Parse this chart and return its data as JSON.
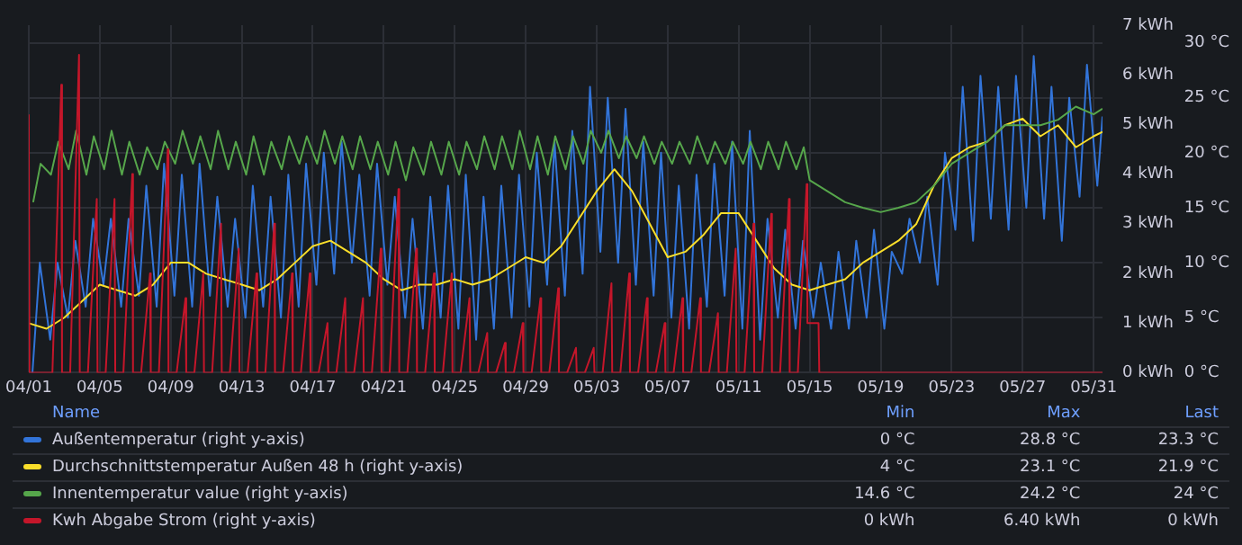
{
  "chart_data": {
    "type": "line",
    "legend": "bottom",
    "grid": true,
    "xlim": [
      "--04-01",
      "--05-31T12:00"
    ],
    "xticks": [
      {
        "value": "--04-01",
        "label": "04/01"
      },
      {
        "value": "--04-05",
        "label": "04/05"
      },
      {
        "value": "--04-09",
        "label": "04/09"
      },
      {
        "value": "--04-13",
        "label": "04/13"
      },
      {
        "value": "--04-17",
        "label": "04/17"
      },
      {
        "value": "--04-21",
        "label": "04/21"
      },
      {
        "value": "--04-25",
        "label": "04/25"
      },
      {
        "value": "--04-29",
        "label": "04/29"
      },
      {
        "value": "--05-03",
        "label": "05/03"
      },
      {
        "value": "--05-07",
        "label": "05/07"
      },
      {
        "value": "--05-11",
        "label": "05/11"
      },
      {
        "value": "--05-15",
        "label": "05/15"
      },
      {
        "value": "--05-19",
        "label": "05/19"
      },
      {
        "value": "--05-23",
        "label": "05/23"
      },
      {
        "value": "--05-27",
        "label": "05/27"
      },
      {
        "value": "--05-31",
        "label": "05/31"
      }
    ],
    "ylim": [
      0,
      31.6
    ],
    "yticks": [
      {
        "value": 0,
        "label": "0 °C"
      },
      {
        "value": 5,
        "label": "5 °C"
      },
      {
        "value": 10,
        "label": "10 °C"
      },
      {
        "value": 15,
        "label": "15 °C"
      },
      {
        "value": 20,
        "label": "20 °C"
      },
      {
        "value": 25,
        "label": "25 °C"
      },
      {
        "value": 30,
        "label": "30 °C"
      }
    ],
    "y2lim": [
      0,
      7
    ],
    "y2ticks": [
      {
        "value": 0,
        "label": "0 kWh"
      },
      {
        "value": 1,
        "label": "1 kWh"
      },
      {
        "value": 2,
        "label": "2 kWh"
      },
      {
        "value": 3,
        "label": "3 kWh"
      },
      {
        "value": 4,
        "label": "4 kWh"
      },
      {
        "value": 5,
        "label": "5 kWh"
      },
      {
        "value": 6,
        "label": "6 kWh"
      },
      {
        "value": 7,
        "label": "7 kWh"
      }
    ],
    "annotations": [
      "Name",
      "Min",
      "Max",
      "Last",
      "0 °C",
      "28.8 °C",
      "23.3 °C",
      "4 °C",
      "23.1 °C",
      "21.9 °C",
      "14.6 °C",
      "24.2 °C",
      "24 °C",
      "0 kWh",
      "6.40 kWh",
      "0 kWh"
    ],
    "series": [
      {
        "name": "Außentemperatur (right y-axis)",
        "color": "#3274d9",
        "x": [
          "--04-01T05:00",
          "--04-01T15:00",
          "--04-02T05:00",
          "--04-02T15:00",
          "--04-03T05:00",
          "--04-03T15:00",
          "--04-04T05:00",
          "--04-04T15:00",
          "--04-05T05:00",
          "--04-05T15:00",
          "--04-06T05:00",
          "--04-06T15:00",
          "--04-07T05:00",
          "--04-07T15:00",
          "--04-08T05:00",
          "--04-08T15:00",
          "--04-09T05:00",
          "--04-09T15:00",
          "--04-10T05:00",
          "--04-10T15:00",
          "--04-11T05:00",
          "--04-11T15:00",
          "--04-12T05:00",
          "--04-12T15:00",
          "--04-13T05:00",
          "--04-13T15:00",
          "--04-14T05:00",
          "--04-14T15:00",
          "--04-15T05:00",
          "--04-15T15:00",
          "--04-16T05:00",
          "--04-16T15:00",
          "--04-17T05:00",
          "--04-17T15:00",
          "--04-18T05:00",
          "--04-18T15:00",
          "--04-19T05:00",
          "--04-19T15:00",
          "--04-20T05:00",
          "--04-20T15:00",
          "--04-21T05:00",
          "--04-21T15:00",
          "--04-22T05:00",
          "--04-22T15:00",
          "--04-23T05:00",
          "--04-23T15:00",
          "--04-24T05:00",
          "--04-24T15:00",
          "--04-25T05:00",
          "--04-25T15:00",
          "--04-26T05:00",
          "--04-26T15:00",
          "--04-27T05:00",
          "--04-27T15:00",
          "--04-28T05:00",
          "--04-28T15:00",
          "--04-29T05:00",
          "--04-29T15:00",
          "--04-30T05:00",
          "--04-30T15:00",
          "--05-01T05:00",
          "--05-01T15:00",
          "--05-02T05:00",
          "--05-02T15:00",
          "--05-03T05:00",
          "--05-03T15:00",
          "--05-04T05:00",
          "--05-04T15:00",
          "--05-05T05:00",
          "--05-05T15:00",
          "--05-06T05:00",
          "--05-06T15:00",
          "--05-07T05:00",
          "--05-07T15:00",
          "--05-08T05:00",
          "--05-08T15:00",
          "--05-09T05:00",
          "--05-09T15:00",
          "--05-10T05:00",
          "--05-10T15:00",
          "--05-11T05:00",
          "--05-11T15:00",
          "--05-12T05:00",
          "--05-12T15:00",
          "--05-13T05:00",
          "--05-13T15:00",
          "--05-14T05:00",
          "--05-14T15:00",
          "--05-15T05:00",
          "--05-15T15:00",
          "--05-16T05:00",
          "--05-16T15:00",
          "--05-17T05:00",
          "--05-17T15:00",
          "--05-18T05:00",
          "--05-18T15:00",
          "--05-19T05:00",
          "--05-19T15:00",
          "--05-20T05:00",
          "--05-20T15:00",
          "--05-21T05:00",
          "--05-21T15:00",
          "--05-22T05:00",
          "--05-22T15:00",
          "--05-23T05:00",
          "--05-23T15:00",
          "--05-24T05:00",
          "--05-24T15:00",
          "--05-25T05:00",
          "--05-25T15:00",
          "--05-26T05:00",
          "--05-26T15:00",
          "--05-27T05:00",
          "--05-27T15:00",
          "--05-28T05:00",
          "--05-28T15:00",
          "--05-29T05:00",
          "--05-29T15:00",
          "--05-30T05:00",
          "--05-30T15:00",
          "--05-31T05:00",
          "--05-31T12:00"
        ],
        "values": [
          0,
          10,
          3,
          10,
          5,
          12,
          6,
          14,
          8,
          14,
          6,
          14,
          7,
          17,
          6,
          19,
          7,
          18,
          6,
          19,
          7,
          16,
          6,
          14,
          5,
          17,
          6,
          16,
          5,
          18,
          6,
          19,
          8,
          20,
          9,
          21,
          10,
          18,
          7,
          19,
          8,
          16,
          5,
          14,
          4,
          16,
          5,
          17,
          4,
          18,
          3,
          16,
          4,
          17,
          5,
          18,
          6,
          20,
          8,
          21,
          7,
          22,
          9,
          26,
          11,
          25,
          10,
          24,
          8,
          21,
          7,
          20,
          5,
          17,
          4,
          18,
          6,
          19,
          7,
          21,
          4,
          22,
          3,
          14,
          5,
          13,
          4,
          12,
          5,
          10,
          4,
          11,
          4,
          12,
          5,
          13,
          4,
          11,
          9,
          14,
          10,
          16,
          8,
          20,
          13,
          26,
          12,
          27,
          14,
          26,
          13,
          27,
          15,
          28.8,
          14,
          26,
          12,
          25,
          16,
          28,
          17,
          23.3
        ]
      },
      {
        "name": "Durchschnittstemperatur Außen 48 h (right y-axis)",
        "color": "#fade2a",
        "x": [
          "--04-01",
          "--04-02",
          "--04-03",
          "--04-04",
          "--04-05",
          "--04-06",
          "--04-07",
          "--04-08",
          "--04-09",
          "--04-10",
          "--04-11",
          "--04-12",
          "--04-13",
          "--04-14",
          "--04-15",
          "--04-16",
          "--04-17",
          "--04-18",
          "--04-19",
          "--04-20",
          "--04-21",
          "--04-22",
          "--04-23",
          "--04-24",
          "--04-25",
          "--04-26",
          "--04-27",
          "--04-28",
          "--04-29",
          "--04-30",
          "--05-01",
          "--05-02",
          "--05-03",
          "--05-04",
          "--05-05",
          "--05-06",
          "--05-07",
          "--05-08",
          "--05-09",
          "--05-10",
          "--05-11",
          "--05-12",
          "--05-13",
          "--05-14",
          "--05-15",
          "--05-16",
          "--05-17",
          "--05-18",
          "--05-19",
          "--05-20",
          "--05-21",
          "--05-22",
          "--05-23",
          "--05-24",
          "--05-25",
          "--05-26",
          "--05-27",
          "--05-28",
          "--05-29",
          "--05-30",
          "--05-31",
          "--05-31T12:00"
        ],
        "values": [
          4.5,
          4,
          5,
          6.5,
          8,
          7.5,
          7,
          8,
          10,
          10,
          9,
          8.5,
          8,
          7.5,
          8.5,
          10,
          11.5,
          12,
          11,
          10,
          8.5,
          7.5,
          8,
          8,
          8.5,
          8,
          8.5,
          9.5,
          10.5,
          10,
          11.5,
          14,
          16.5,
          18.5,
          16.5,
          13.5,
          10.5,
          11,
          12.5,
          14.5,
          14.5,
          12,
          9.5,
          8,
          7.5,
          8,
          8.5,
          10,
          11,
          12,
          13.5,
          17,
          19.5,
          20.5,
          21,
          22.5,
          23.1,
          21.5,
          22.5,
          20.5,
          21.5,
          21.9
        ]
      },
      {
        "name": "Innentemperatur value (right y-axis)",
        "color": "#56a64b",
        "x": [
          "--04-01T06:00",
          "--04-01T16:00",
          "--04-02T06:00",
          "--04-02T16:00",
          "--04-03T06:00",
          "--04-03T16:00",
          "--04-04T06:00",
          "--04-04T16:00",
          "--04-05T06:00",
          "--04-05T16:00",
          "--04-06T06:00",
          "--04-06T16:00",
          "--04-07T06:00",
          "--04-07T16:00",
          "--04-08T06:00",
          "--04-08T16:00",
          "--04-09T06:00",
          "--04-09T16:00",
          "--04-10T06:00",
          "--04-10T16:00",
          "--04-11T06:00",
          "--04-11T16:00",
          "--04-12T06:00",
          "--04-12T16:00",
          "--04-13T06:00",
          "--04-13T16:00",
          "--04-14T06:00",
          "--04-14T16:00",
          "--04-15T06:00",
          "--04-15T16:00",
          "--04-16T06:00",
          "--04-16T16:00",
          "--04-17T06:00",
          "--04-17T16:00",
          "--04-18T06:00",
          "--04-18T16:00",
          "--04-19T06:00",
          "--04-19T16:00",
          "--04-20T06:00",
          "--04-20T16:00",
          "--04-21T06:00",
          "--04-21T16:00",
          "--04-22T06:00",
          "--04-22T16:00",
          "--04-23T06:00",
          "--04-23T16:00",
          "--04-24T06:00",
          "--04-24T16:00",
          "--04-25T06:00",
          "--04-25T16:00",
          "--04-26T06:00",
          "--04-26T16:00",
          "--04-27T06:00",
          "--04-27T16:00",
          "--04-28T06:00",
          "--04-28T16:00",
          "--04-29T06:00",
          "--04-29T16:00",
          "--04-30T06:00",
          "--04-30T16:00",
          "--05-01T06:00",
          "--05-01T16:00",
          "--05-02T06:00",
          "--05-02T16:00",
          "--05-03T06:00",
          "--05-03T16:00",
          "--05-04T06:00",
          "--05-04T16:00",
          "--05-05T06:00",
          "--05-05T16:00",
          "--05-06T06:00",
          "--05-06T16:00",
          "--05-07T06:00",
          "--05-07T16:00",
          "--05-08T06:00",
          "--05-08T16:00",
          "--05-09T06:00",
          "--05-09T16:00",
          "--05-10T06:00",
          "--05-10T16:00",
          "--05-11T06:00",
          "--05-11T16:00",
          "--05-12T06:00",
          "--05-12T16:00",
          "--05-13T06:00",
          "--05-13T16:00",
          "--05-14T06:00",
          "--05-14T16:00",
          "--05-15",
          "--05-16",
          "--05-17",
          "--05-18",
          "--05-19",
          "--05-20",
          "--05-21",
          "--05-22",
          "--05-23",
          "--05-24",
          "--05-25",
          "--05-26",
          "--05-27",
          "--05-28",
          "--05-29",
          "--05-30",
          "--05-31",
          "--05-31T12:00"
        ],
        "values": [
          15.5,
          19,
          18,
          21,
          18.5,
          22,
          18,
          21.5,
          18.5,
          22,
          18,
          21,
          18,
          20.5,
          18.5,
          21,
          19,
          22,
          19,
          21.5,
          18.5,
          22,
          18.5,
          21,
          18,
          21.5,
          18,
          21,
          18.5,
          21.5,
          19,
          21.5,
          19,
          22,
          19,
          21.5,
          18.5,
          21.5,
          18.5,
          21,
          18,
          21,
          17.5,
          20.5,
          18,
          21,
          18,
          21,
          18,
          21,
          18.5,
          21.5,
          18.5,
          21.5,
          18.5,
          22,
          18.5,
          21.5,
          18,
          21.5,
          18.5,
          21.5,
          19,
          22,
          20,
          22,
          19.5,
          21.5,
          19.5,
          21.5,
          19,
          21,
          19,
          21,
          19,
          21.5,
          19,
          21,
          19,
          21,
          19,
          21,
          18.5,
          21,
          18.5,
          21,
          18.5,
          20.5,
          17.5,
          16.5,
          15.5,
          15,
          14.6,
          15,
          15.5,
          17,
          19,
          20,
          21,
          22.5,
          22.5,
          22.5,
          23,
          24.2,
          23.5,
          24
        ]
      },
      {
        "name": "Kwh Abgabe Strom (right y-axis)",
        "color": "#c4162a",
        "axis": "y2",
        "x": [
          "--04-01",
          "--04-01T01:00",
          "--04-01T08:00",
          "--04-02T08:00",
          "--04-02T20:00",
          "--04-02T21:00",
          "--04-03T08:00",
          "--04-03T20:00",
          "--04-03T21:00",
          "--04-04T08:00",
          "--04-04T20:00",
          "--04-04T21:00",
          "--04-05T08:00",
          "--04-05T20:00",
          "--04-05T21:00",
          "--04-06T08:00",
          "--04-06T20:00",
          "--04-06T21:00",
          "--04-07T08:00",
          "--04-07T20:00",
          "--04-07T21:00",
          "--04-08T08:00",
          "--04-08T20:00",
          "--04-08T21:00",
          "--04-09T08:00",
          "--04-09T20:00",
          "--04-09T21:00",
          "--04-10T08:00",
          "--04-10T20:00",
          "--04-10T21:00",
          "--04-11T08:00",
          "--04-11T20:00",
          "--04-11T21:00",
          "--04-12T08:00",
          "--04-12T20:00",
          "--04-12T21:00",
          "--04-13T08:00",
          "--04-13T20:00",
          "--04-13T21:00",
          "--04-14T08:00",
          "--04-14T20:00",
          "--04-14T21:00",
          "--04-15T08:00",
          "--04-15T20:00",
          "--04-15T21:00",
          "--04-16T08:00",
          "--04-16T20:00",
          "--04-16T21:00",
          "--04-17T08:00",
          "--04-17T20:00",
          "--04-17T21:00",
          "--04-18T08:00",
          "--04-18T20:00",
          "--04-18T21:00",
          "--04-19T08:00",
          "--04-19T20:00",
          "--04-19T21:00",
          "--04-20T08:00",
          "--04-20T20:00",
          "--04-20T21:00",
          "--04-21T08:00",
          "--04-21T20:00",
          "--04-21T21:00",
          "--04-22T08:00",
          "--04-22T20:00",
          "--04-22T21:00",
          "--04-23T08:00",
          "--04-23T20:00",
          "--04-23T21:00",
          "--04-24T08:00",
          "--04-24T20:00",
          "--04-24T21:00",
          "--04-25T08:00",
          "--04-25T20:00",
          "--04-25T21:00",
          "--04-26T08:00",
          "--04-26T20:00",
          "--04-26T21:00",
          "--04-27T08:00",
          "--04-27T20:00",
          "--04-27T21:00",
          "--04-28T08:00",
          "--04-28T20:00",
          "--04-28T21:00",
          "--04-29T08:00",
          "--04-29T20:00",
          "--04-29T21:00",
          "--04-30T08:00",
          "--04-30T20:00",
          "--04-30T21:00",
          "--05-01T08:00",
          "--05-01T20:00",
          "--05-01T21:00",
          "--05-02T08:00",
          "--05-02T20:00",
          "--05-02T21:00",
          "--05-03T08:00",
          "--05-03T20:00",
          "--05-03T21:00",
          "--05-04T08:00",
          "--05-04T20:00",
          "--05-04T21:00",
          "--05-05T08:00",
          "--05-05T20:00",
          "--05-05T21:00",
          "--05-06T08:00",
          "--05-06T20:00",
          "--05-06T21:00",
          "--05-07T08:00",
          "--05-07T20:00",
          "--05-07T21:00",
          "--05-08T08:00",
          "--05-08T20:00",
          "--05-08T21:00",
          "--05-09T08:00",
          "--05-09T20:00",
          "--05-09T21:00",
          "--05-10T08:00",
          "--05-10T20:00",
          "--05-10T21:00",
          "--05-11T08:00",
          "--05-11T20:00",
          "--05-11T21:00",
          "--05-12T08:00",
          "--05-12T20:00",
          "--05-12T21:00",
          "--05-13T08:00",
          "--05-13T20:00",
          "--05-13T21:00",
          "--05-14T08:00",
          "--05-14T20:00",
          "--05-14T21:00",
          "--05-15T12:00",
          "--05-15T13:00",
          "--05-31T12:00"
        ],
        "values": [
          5.2,
          0,
          0,
          0,
          5.8,
          0,
          0,
          6.4,
          0,
          0,
          3.5,
          0,
          0,
          3.5,
          0,
          0,
          4,
          0,
          0,
          2,
          0,
          0,
          4.5,
          0,
          0,
          1.5,
          0,
          0,
          2,
          0,
          0,
          3,
          0,
          0,
          2.5,
          0,
          0,
          2,
          0,
          0,
          3,
          0,
          0,
          2,
          0,
          0,
          2,
          0,
          0,
          1,
          0,
          0,
          1.5,
          0,
          0,
          1.5,
          0,
          0,
          2.5,
          0,
          0,
          3.7,
          0,
          0,
          2.5,
          0,
          0,
          2,
          0,
          0,
          2,
          0,
          0,
          1.5,
          0,
          0,
          0.8,
          0,
          0,
          0.6,
          0,
          0,
          1,
          0,
          0,
          1.5,
          0,
          0,
          1.7,
          0,
          0,
          0.5,
          0,
          0,
          0.5,
          0,
          0,
          1.8,
          0,
          0,
          2,
          0,
          0,
          1.5,
          0,
          0,
          1,
          0,
          0,
          1.5,
          0,
          0,
          1.5,
          0,
          0,
          1.2,
          0,
          0,
          2.5,
          0,
          0,
          3,
          0,
          0,
          3.2,
          0,
          0,
          3.5,
          0,
          0,
          3.8,
          1,
          1,
          0,
          0
        ]
      }
    ]
  }
}
